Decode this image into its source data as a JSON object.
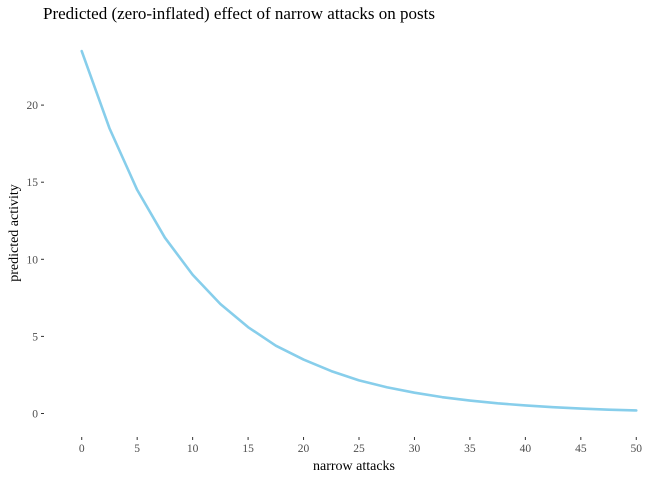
{
  "chart_data": {
    "type": "line",
    "title": "Predicted (zero-inflated) effect of narrow attacks on posts",
    "xlabel": "narrow attacks",
    "ylabel": "predicted activity",
    "xlim": [
      -2.5,
      52.5
    ],
    "ylim": [
      -1.2,
      25.0
    ],
    "x_ticks": [
      0,
      5,
      10,
      15,
      20,
      25,
      30,
      35,
      40,
      45,
      50
    ],
    "y_ticks": [
      0,
      5,
      10,
      15,
      20
    ],
    "grid": false,
    "legend": "none",
    "line_color": "#87CEEB",
    "series": [
      {
        "x": [
          0,
          2.5,
          5,
          7.5,
          10,
          12.5,
          15,
          17.5,
          20,
          22.5,
          25,
          27.5,
          30,
          32.5,
          35,
          37.5,
          40,
          42.5,
          45,
          47.5,
          50
        ],
        "values": [
          23.5,
          18.5,
          14.5,
          11.4,
          9.0,
          7.1,
          5.6,
          4.4,
          3.5,
          2.75,
          2.15,
          1.7,
          1.35,
          1.06,
          0.84,
          0.66,
          0.52,
          0.41,
          0.32,
          0.25,
          0.2
        ]
      }
    ]
  }
}
